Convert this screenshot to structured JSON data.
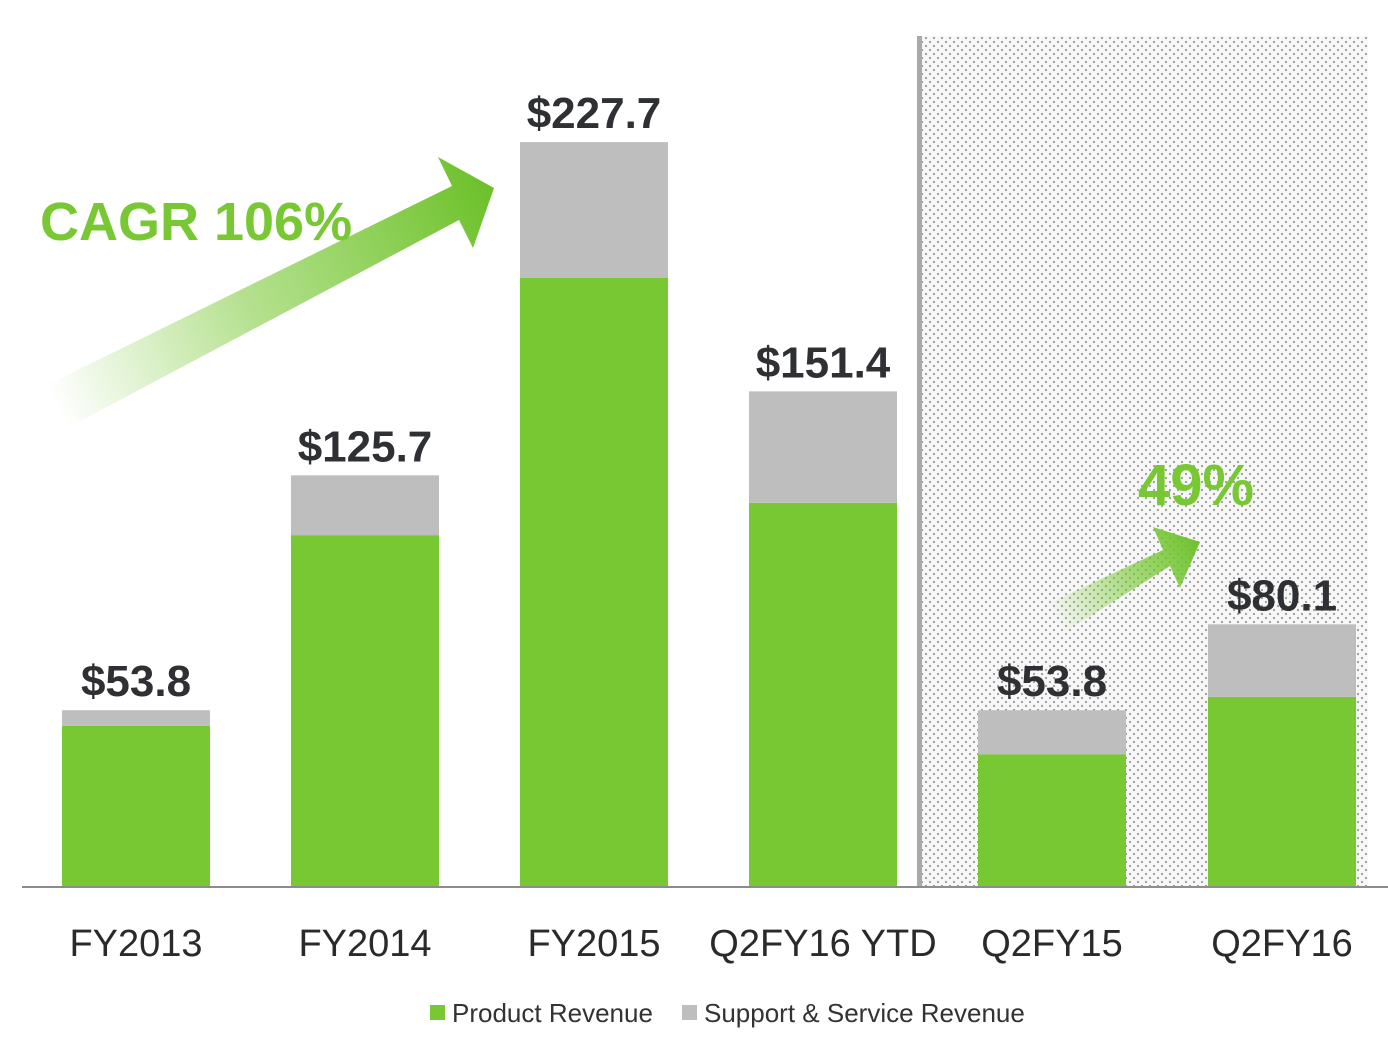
{
  "chart_data": {
    "type": "bar",
    "stacked": true,
    "categories": [
      "FY2013",
      "FY2014",
      "FY2015",
      "Q2FY16 YTD",
      "Q2FY15",
      "Q2FY16"
    ],
    "series": [
      {
        "name": "Product Revenue",
        "color": "#77c832",
        "values": [
          49.0,
          107.4,
          186.2,
          117.3,
          40.3,
          57.9
        ]
      },
      {
        "name": "Support & Service Revenue",
        "color": "#bebebe",
        "values": [
          4.8,
          18.3,
          41.5,
          34.1,
          13.5,
          22.2
        ]
      }
    ],
    "totals": [
      53.8,
      125.7,
      227.7,
      151.4,
      53.8,
      80.1
    ],
    "total_labels": [
      "$53.8",
      "$125.7",
      "$227.7",
      "$151.4",
      "$53.8",
      "$80.1"
    ],
    "ylim": [
      0,
      260
    ],
    "grid": false,
    "legend_position": "bottom-center",
    "highlighted_categories": [
      "Q2FY15",
      "Q2FY16"
    ],
    "annotations": [
      {
        "text": "CAGR 106%",
        "color": "#77c832"
      },
      {
        "text": "49%",
        "color": "#77c832"
      }
    ]
  }
}
